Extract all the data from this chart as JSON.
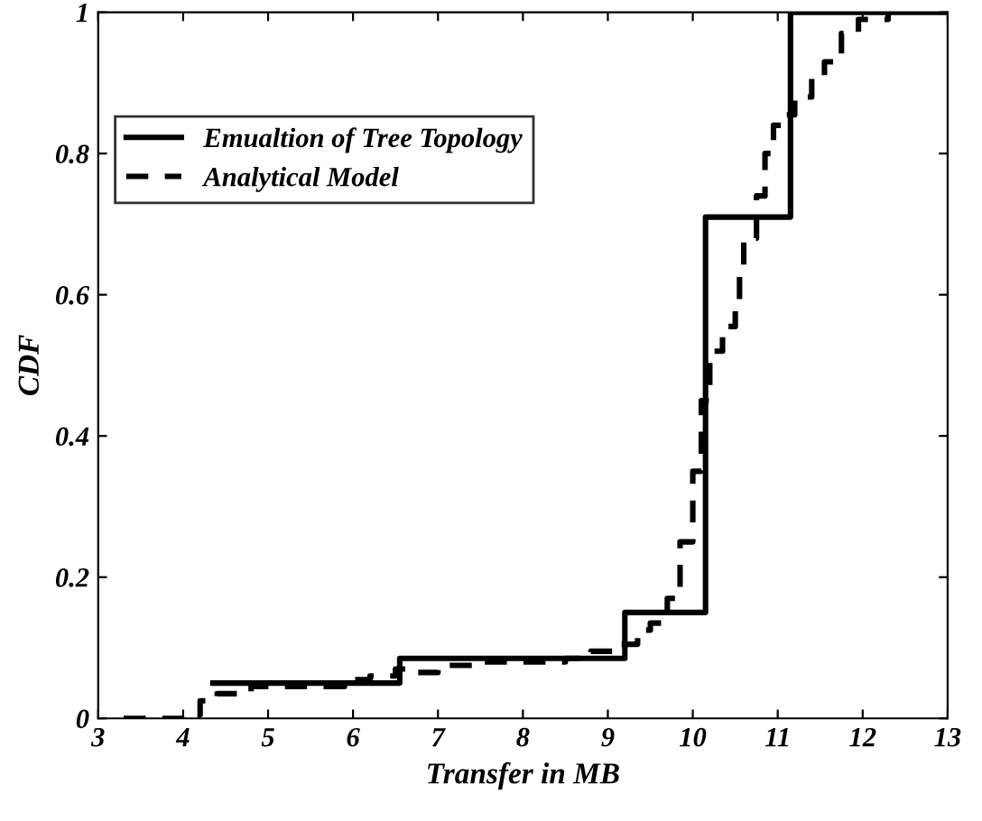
{
  "chart_data": {
    "type": "step",
    "xlabel": "Transfer in MB",
    "ylabel": "CDF",
    "series": [
      {
        "name": "Emualtion of Tree Topology",
        "color": "#000000",
        "line_style": "solid",
        "x": [
          4.35,
          6.55,
          9.2,
          10.15,
          11.15,
          13
        ],
        "values": [
          0.05,
          0.085,
          0.15,
          0.71,
          1.0,
          1.0
        ]
      },
      {
        "name": "Analytical Model",
        "color": "#000000",
        "line_style": "dashed",
        "x": [
          3.3,
          3.8,
          4.0,
          4.2,
          4.4,
          4.8,
          5.5,
          5.9,
          6.2,
          6.5,
          6.7,
          7.0,
          7.5,
          8.5,
          8.8,
          9.1,
          9.35,
          9.5,
          9.7,
          9.85,
          10.0,
          10.1,
          10.2,
          10.35,
          10.5,
          10.55,
          10.6,
          10.75,
          10.85,
          10.95,
          11.05,
          11.2,
          11.4,
          11.55,
          11.75,
          11.95,
          12.3
        ],
        "values": [
          0,
          0,
          0.005,
          0.025,
          0.035,
          0.045,
          0.045,
          0.055,
          0.06,
          0.07,
          0.065,
          0.075,
          0.08,
          0.085,
          0.095,
          0.105,
          0.125,
          0.135,
          0.17,
          0.25,
          0.35,
          0.45,
          0.52,
          0.555,
          0.59,
          0.63,
          0.68,
          0.74,
          0.8,
          0.84,
          0.855,
          0.88,
          0.91,
          0.93,
          0.97,
          0.99,
          1.0
        ]
      }
    ],
    "xlim": [
      3,
      13
    ],
    "ylim": [
      0,
      1
    ],
    "xticks": [
      3,
      4,
      5,
      6,
      7,
      8,
      9,
      10,
      11,
      12,
      13
    ],
    "yticks": [
      0,
      0.2,
      0.4,
      0.6,
      0.8,
      1
    ],
    "grid": false,
    "legend": "top left"
  }
}
